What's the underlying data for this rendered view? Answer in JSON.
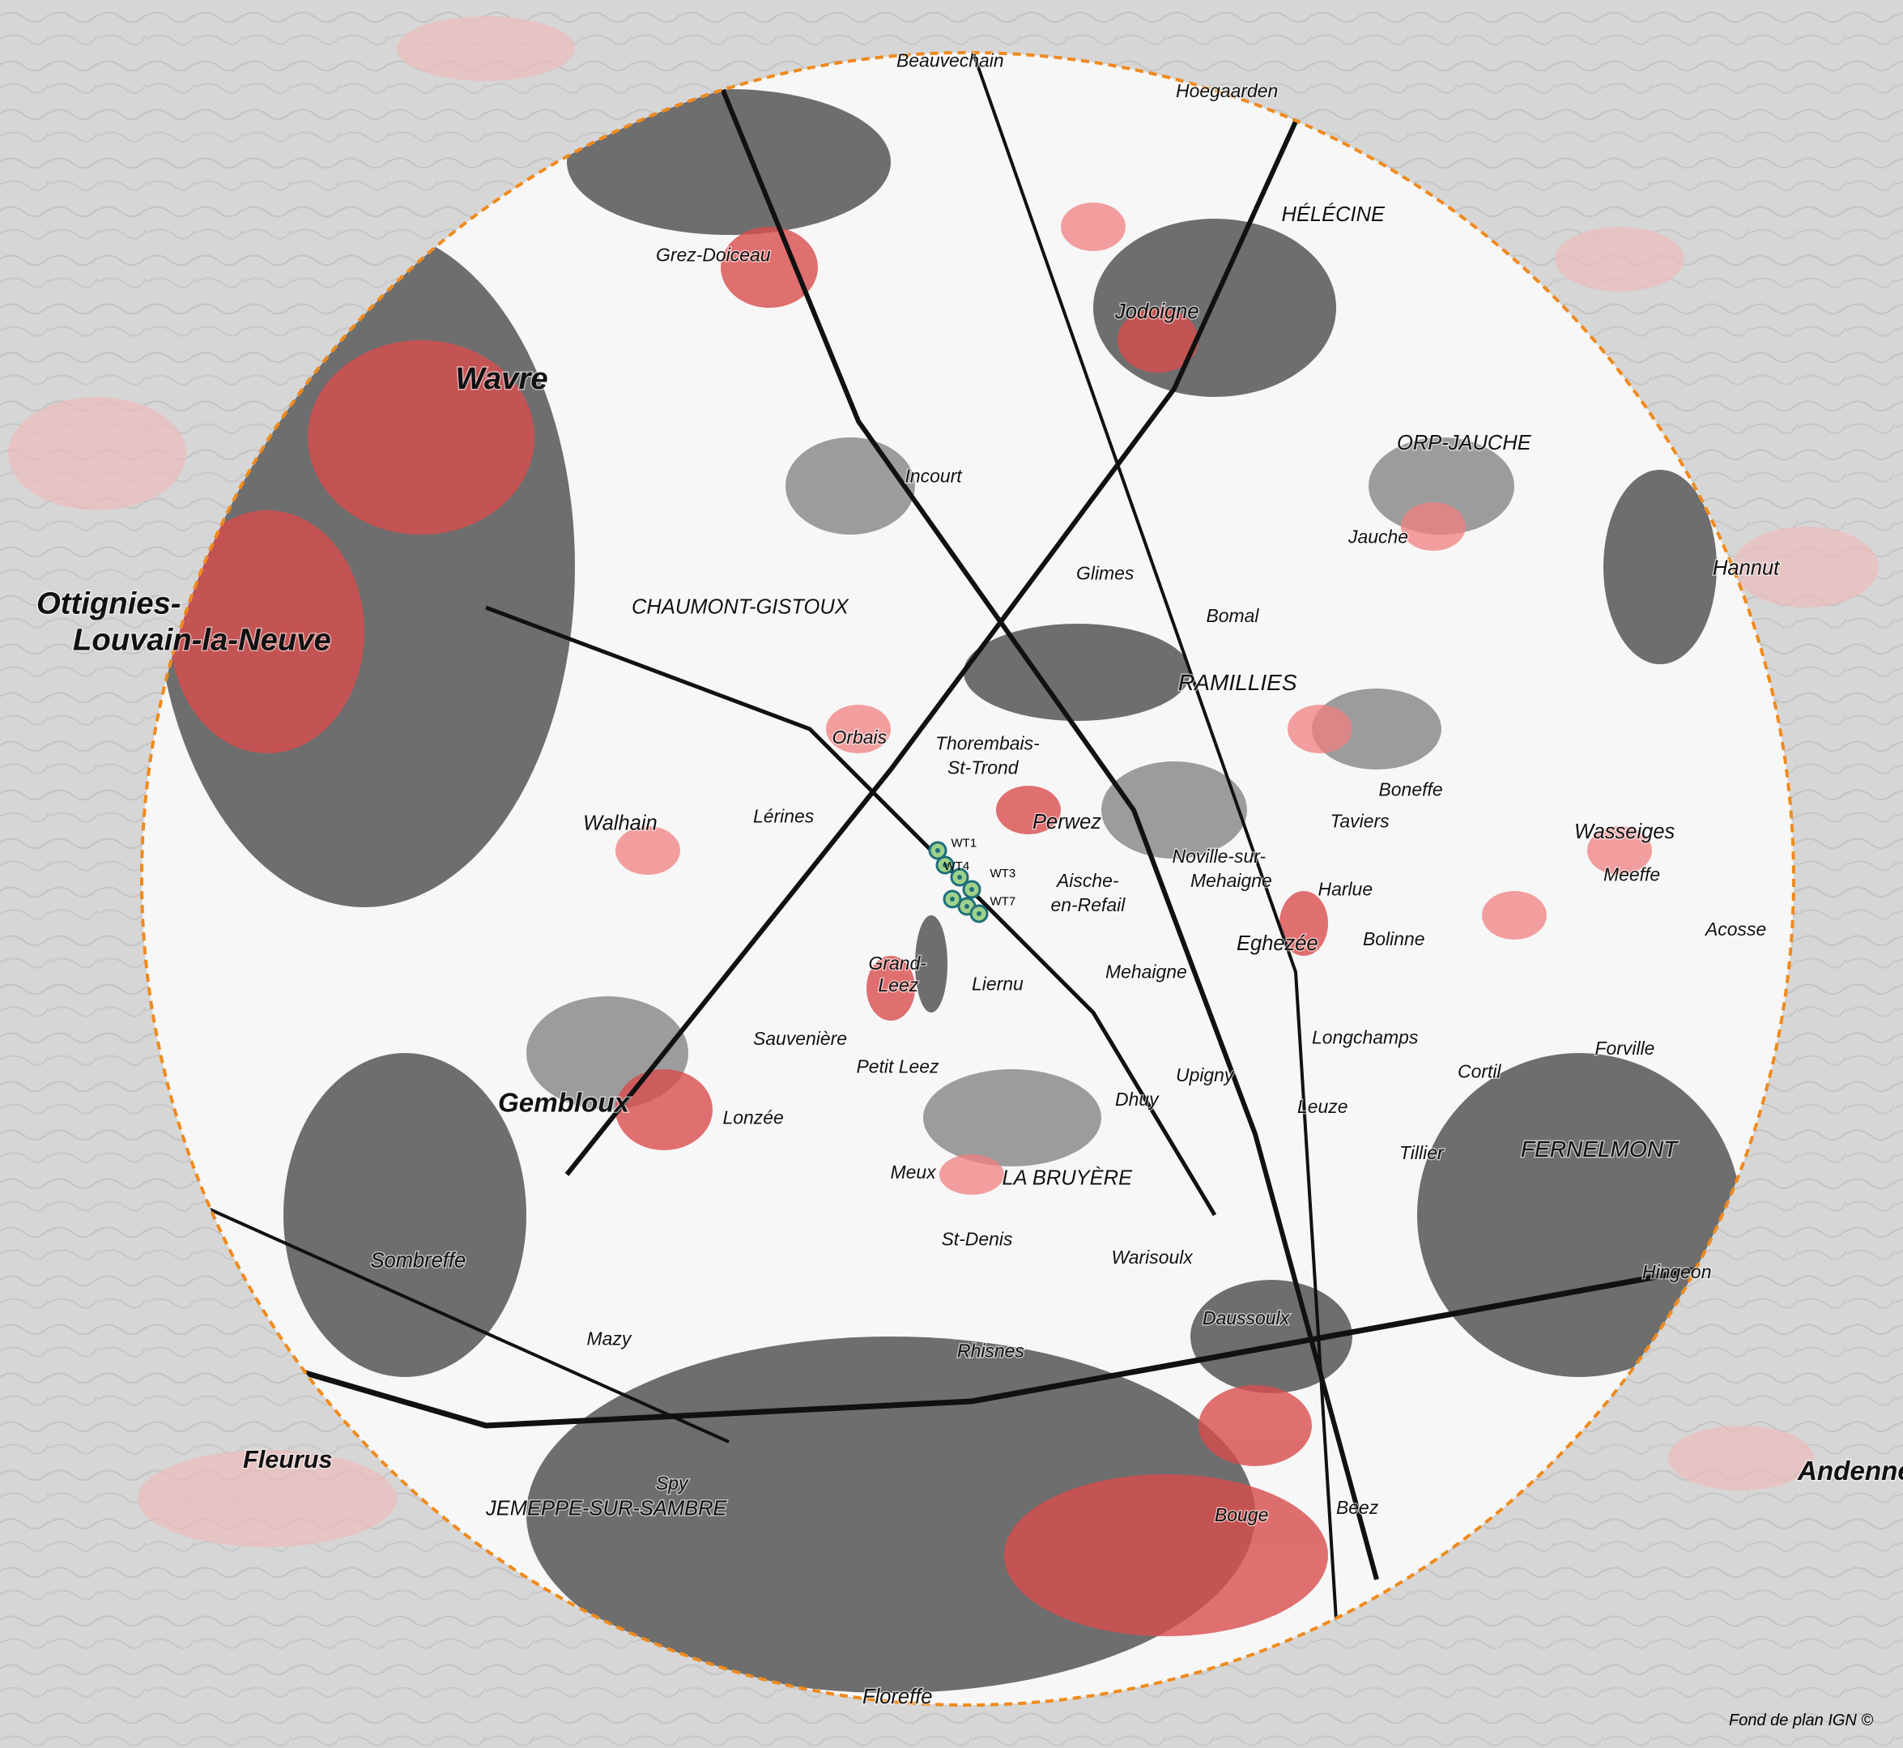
{
  "map": {
    "places": [
      "Wavre",
      "Ottignies-",
      "Louvain-la-Neuve",
      "Gembloux",
      "CHAUMONT-GISTOUX",
      "Jodoigne",
      "HÉLÉCINE",
      "ORP-JAUCHE",
      "RAMILLIES",
      "Perwez",
      "Eghezée",
      "LA BRUYÈRE",
      "FERNELMONT",
      "Hannut",
      "Wasseiges",
      "JEMEPPE-SUR-SAMBRE",
      "Fleurus",
      "Andenne",
      "Walhain",
      "Sombreffe",
      "Floreffe",
      "Beauvechain",
      "Hoegaarden",
      "Grez-Doiceau",
      "Incourt",
      "Thorembais-",
      "St-Trond",
      "Noville-sur-",
      "Mehaigne",
      "Aische-",
      "en-Refail",
      "Meux",
      "St-Denis",
      "Lonzée",
      "Sauvenière",
      "Grand-",
      "Leez",
      "Petit Leez",
      "Liernu",
      "Dhuy",
      "Leuze",
      "Warisoulx",
      "Daussoulx",
      "Rhisnes",
      "Bouge",
      "Beez",
      "Spy",
      "Mazy",
      "Lérines",
      "Orbais",
      "Glimes",
      "Jauche",
      "Bomal",
      "Mehaigne",
      "Longchamps",
      "Tillier",
      "Forville",
      "Hingeon",
      "Boneffe",
      "Taviers",
      "Harlue",
      "Bolinne",
      "Cortil",
      "Upigny",
      "Meeffe",
      "Acosse"
    ],
    "turbines": [
      "WT1",
      "WT4",
      "WT3",
      "WT7"
    ],
    "credit": "Fond de plan IGN ©"
  }
}
